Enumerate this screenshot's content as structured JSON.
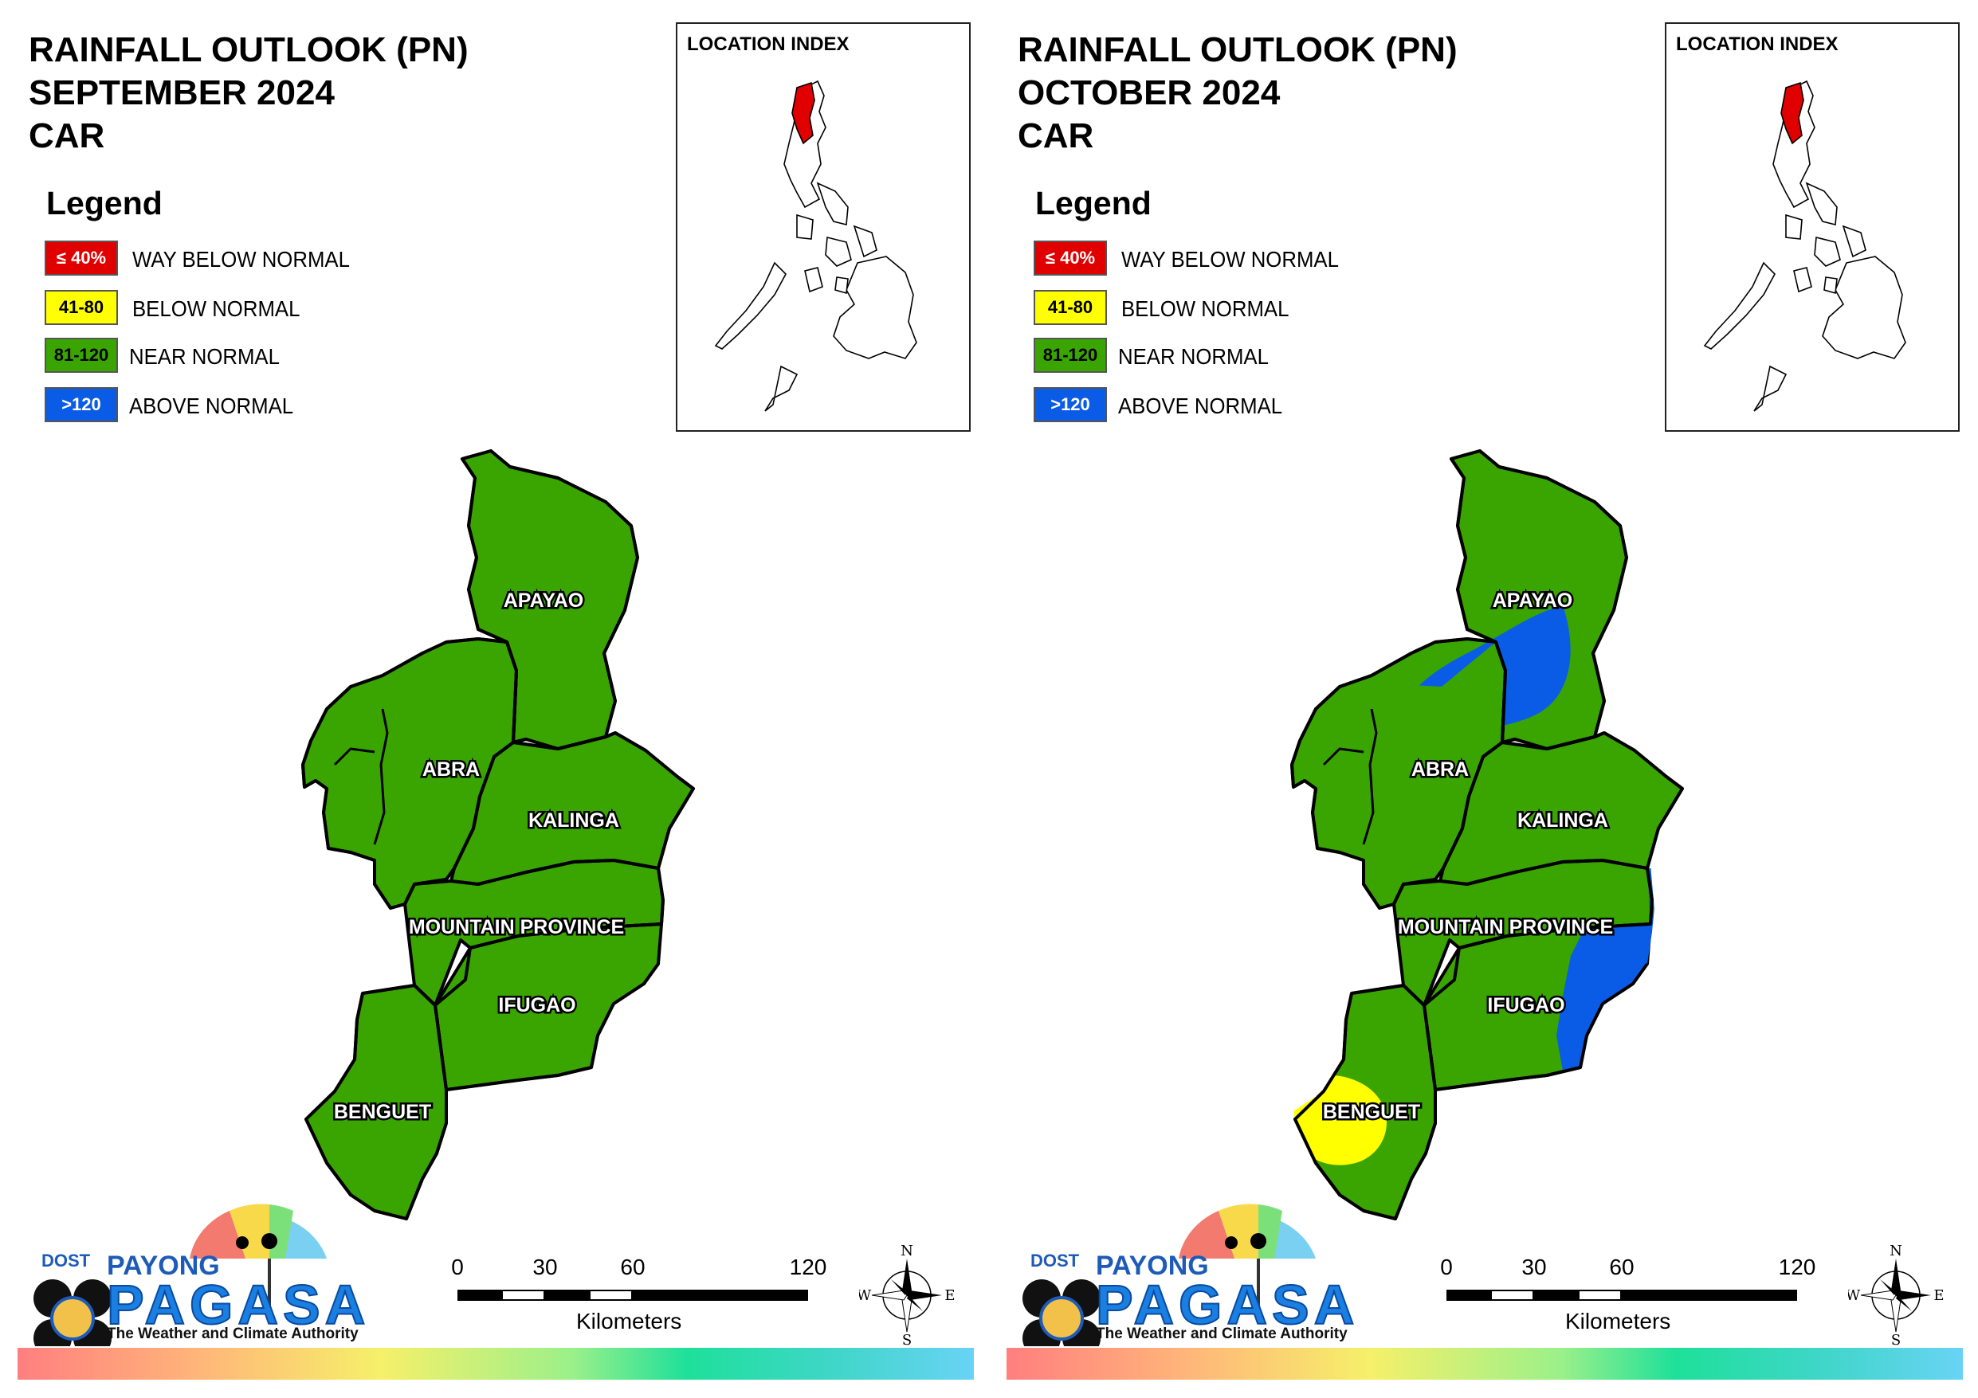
{
  "panels": [
    {
      "title_lines": [
        "RAINFALL OUTLOOK (PN)",
        "SEPTEMBER 2024",
        "CAR"
      ],
      "legend_title": "Legend",
      "legend": [
        {
          "swatch": "≤ 40%",
          "label": "WAY BELOW NORMAL",
          "color": "#e00000",
          "text_color": "#ffffff"
        },
        {
          "swatch": "41-80",
          "label": "BELOW NORMAL",
          "color": "#ffff00",
          "text_color": "#000000"
        },
        {
          "swatch": "81-120",
          "label": "NEAR NORMAL",
          "color": "#3aa500",
          "text_color": "#000000"
        },
        {
          "swatch": ">120",
          "label": "ABOVE NORMAL",
          "color": "#0a5ce6",
          "text_color": "#ffffff"
        }
      ],
      "inset_title": "LOCATION INDEX",
      "provinces": {
        "apayao": "APAYAO",
        "abra": "ABRA",
        "kalinga": "KALINGA",
        "mountain": "MOUNTAIN PROVINCE",
        "ifugao": "IFUGAO",
        "benguet": "BENGUET"
      },
      "province_categories": {
        "apayao": "NEAR NORMAL",
        "abra": "NEAR NORMAL",
        "kalinga": "NEAR NORMAL",
        "mountain": "NEAR NORMAL",
        "ifugao": "NEAR NORMAL",
        "benguet": "NEAR NORMAL"
      },
      "overlays": [],
      "logo": {
        "dost": "DOST",
        "payong": "PAYONG",
        "pagasa": "PAGASA",
        "tagline": "The Weather and Climate Authority"
      },
      "scale": {
        "ticks": [
          "0",
          "30",
          "60",
          "120"
        ],
        "unit": "Kilometers"
      },
      "compass": {
        "n": "N",
        "s": "S",
        "e": "E",
        "w": "W"
      }
    },
    {
      "title_lines": [
        "RAINFALL OUTLOOK (PN)",
        "OCTOBER 2024",
        "CAR"
      ],
      "legend_title": "Legend",
      "legend": [
        {
          "swatch": "≤ 40%",
          "label": "WAY BELOW NORMAL",
          "color": "#e00000",
          "text_color": "#ffffff"
        },
        {
          "swatch": "41-80",
          "label": "BELOW NORMAL",
          "color": "#ffff00",
          "text_color": "#000000"
        },
        {
          "swatch": "81-120",
          "label": "NEAR NORMAL",
          "color": "#3aa500",
          "text_color": "#000000"
        },
        {
          "swatch": ">120",
          "label": "ABOVE NORMAL",
          "color": "#0a5ce6",
          "text_color": "#ffffff"
        }
      ],
      "inset_title": "LOCATION INDEX",
      "provinces": {
        "apayao": "APAYAO",
        "abra": "ABRA",
        "kalinga": "KALINGA",
        "mountain": "MOUNTAIN PROVINCE",
        "ifugao": "IFUGAO",
        "benguet": "BENGUET"
      },
      "province_categories": {
        "apayao": "NEAR NORMAL",
        "abra": "NEAR NORMAL",
        "kalinga": "NEAR NORMAL",
        "mountain": "NEAR NORMAL",
        "ifugao": "NEAR NORMAL",
        "benguet": "NEAR NORMAL"
      },
      "overlays": [
        {
          "category": "ABOVE NORMAL",
          "area": "western Apayao / northern Abra"
        },
        {
          "category": "ABOVE NORMAL",
          "area": "eastern Mountain Province / eastern Ifugao"
        },
        {
          "category": "BELOW NORMAL",
          "area": "western Benguet"
        }
      ],
      "logo": {
        "dost": "DOST",
        "payong": "PAYONG",
        "pagasa": "PAGASA",
        "tagline": "The Weather and Climate Authority"
      },
      "scale": {
        "ticks": [
          "0",
          "30",
          "60",
          "120"
        ],
        "unit": "Kilometers"
      },
      "compass": {
        "n": "N",
        "s": "S",
        "e": "E",
        "w": "W"
      }
    }
  ],
  "colors": {
    "near_normal": "#3aa500",
    "above_normal": "#0a5ce6",
    "below_normal": "#ffff00",
    "way_below_normal": "#e00000",
    "inset_highlight": "#e00000"
  }
}
